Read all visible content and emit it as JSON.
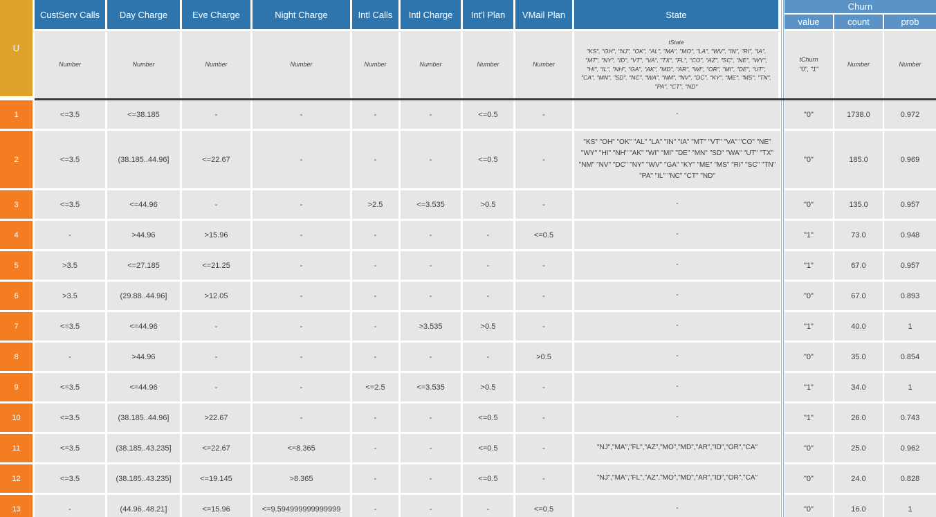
{
  "colors": {
    "header_blue": "#2e75ae",
    "churn_header_blue": "#5b93c6",
    "corner_amber": "#e0a22c",
    "row_number_orange": "#f57c20",
    "cell_gray": "#e6e6e6",
    "divider_dark": "#3b3b3b",
    "pane_separator_blue": "#8ab5da"
  },
  "table": {
    "corner_label": "U",
    "columns": [
      {
        "label": "CustServ Calls",
        "type": "Number"
      },
      {
        "label": "Day Charge",
        "type": "Number"
      },
      {
        "label": "Eve Charge",
        "type": "Number"
      },
      {
        "label": "Night Charge",
        "type": "Number"
      },
      {
        "label": "Intl Calls",
        "type": "Number"
      },
      {
        "label": "Intl Charge",
        "type": "Number"
      },
      {
        "label": "Int'l Plan",
        "type": "Number"
      },
      {
        "label": "VMail Plan",
        "type": "Number"
      },
      {
        "label": "State",
        "type_name": "tState",
        "type_values": "\"KS\", \"OH\", \"NJ\", \"OK\", \"AL\", \"MA\", \"MO\", \"LA\", \"WV\", \"IN\", \"RI\", \"IA\", \"MT\", \"NY\", \"ID\", \"VT\", \"VA\", \"TX\", \"FL\", \"CO\", \"AZ\", \"SC\", \"NE\", \"WY\", \"HI\", \"IL\", \"NH\", \"GA\", \"AK\", \"MD\", \"AR\", \"WI\", \"OR\", \"MI\", \"DE\", \"UT\", \"CA\", \"MN\", \"SD\", \"NC\", \"WA\", \"NM\", \"NV\", \"DC\", \"KY\", \"ME\", \"MS\", \"TN\", \"PA\", \"CT\", \"ND\""
      }
    ],
    "churn": {
      "group_label": "Churn",
      "subcolumns": [
        {
          "label": "value",
          "type_name": "tChurn",
          "type_values": "\"0\", \"1\""
        },
        {
          "label": "count",
          "type": "Number"
        },
        {
          "label": "prob",
          "type": "Number"
        }
      ]
    },
    "rows": [
      {
        "n": "1",
        "values": [
          "<=3.5",
          "<=38.185",
          "-",
          "-",
          "-",
          "-",
          "<=0.5",
          "-",
          "-"
        ],
        "churn": [
          "\"0\"",
          "1738.0",
          "0.972"
        ]
      },
      {
        "n": "2",
        "values": [
          "<=3.5",
          "(38.185..44.96]",
          "<=22.67",
          "-",
          "-",
          "-",
          "<=0.5",
          "-",
          "\"KS\" \"OH\" \"OK\" \"AL\" \"LA\" \"IN\" \"IA\" \"MT\" \"VT\" \"VA\" \"CO\" \"NE\" \"WY\" \"HI\" \"NH\" \"AK\" \"WI\" \"MI\" \"DE\" \"MN\" \"SD\" \"WA\" \"UT\" \"TX\" \"NM\" \"NV\" \"DC\" \"NY\" \"WV\" \"GA\" \"KY\" \"ME\" \"MS\" \"RI\" \"SC\" \"TN\" \"PA\" \"IL\" \"NC\" \"CT\" \"ND\""
        ],
        "churn": [
          "\"0\"",
          "185.0",
          "0.969"
        ]
      },
      {
        "n": "3",
        "values": [
          "<=3.5",
          "<=44.96",
          "-",
          "-",
          ">2.5",
          "<=3.535",
          ">0.5",
          "-",
          "-"
        ],
        "churn": [
          "\"0\"",
          "135.0",
          "0.957"
        ]
      },
      {
        "n": "4",
        "values": [
          "-",
          ">44.96",
          ">15.96",
          "-",
          "-",
          "-",
          "-",
          "<=0.5",
          "-"
        ],
        "churn": [
          "\"1\"",
          "73.0",
          "0.948"
        ]
      },
      {
        "n": "5",
        "values": [
          ">3.5",
          "<=27.185",
          "<=21.25",
          "-",
          "-",
          "-",
          "-",
          "-",
          "-"
        ],
        "churn": [
          "\"1\"",
          "67.0",
          "0.957"
        ]
      },
      {
        "n": "6",
        "values": [
          ">3.5",
          "(29.88..44.96]",
          ">12.05",
          "-",
          "-",
          "-",
          "-",
          "-",
          "-"
        ],
        "churn": [
          "\"0\"",
          "67.0",
          "0.893"
        ]
      },
      {
        "n": "7",
        "values": [
          "<=3.5",
          "<=44.96",
          "-",
          "-",
          "-",
          ">3.535",
          ">0.5",
          "-",
          "-"
        ],
        "churn": [
          "\"1\"",
          "40.0",
          "1"
        ]
      },
      {
        "n": "8",
        "values": [
          "-",
          ">44.96",
          "-",
          "-",
          "-",
          "-",
          "-",
          ">0.5",
          "-"
        ],
        "churn": [
          "\"0\"",
          "35.0",
          "0.854"
        ]
      },
      {
        "n": "9",
        "values": [
          "<=3.5",
          "<=44.96",
          "-",
          "-",
          "<=2.5",
          "<=3.535",
          ">0.5",
          "-",
          "-"
        ],
        "churn": [
          "\"1\"",
          "34.0",
          "1"
        ]
      },
      {
        "n": "10",
        "values": [
          "<=3.5",
          "(38.185..44.96]",
          ">22.67",
          "-",
          "-",
          "-",
          "<=0.5",
          "-",
          "-"
        ],
        "churn": [
          "\"1\"",
          "26.0",
          "0.743"
        ]
      },
      {
        "n": "11",
        "values": [
          "<=3.5",
          "(38.185..43.235]",
          "<=22.67",
          "<=8.365",
          "-",
          "-",
          "<=0.5",
          "-",
          "\"NJ\",\"MA\",\"FL\",\"AZ\",\"MO\",\"MD\",\"AR\",\"ID\",\"OR\",\"CA\""
        ],
        "churn": [
          "\"0\"",
          "25.0",
          "0.962"
        ]
      },
      {
        "n": "12",
        "values": [
          "<=3.5",
          "(38.185..43.235]",
          "<=19.145",
          ">8.365",
          "-",
          "-",
          "<=0.5",
          "-",
          "\"NJ\",\"MA\",\"FL\",\"AZ\",\"MO\",\"MD\",\"AR\",\"ID\",\"OR\",\"CA\""
        ],
        "churn": [
          "\"0\"",
          "24.0",
          "0.828"
        ]
      },
      {
        "n": "13",
        "values": [
          "-",
          "(44.96..48.21]",
          "<=15.96",
          "<=9.594999999999999",
          "-",
          "-",
          "-",
          "<=0.5",
          "-"
        ],
        "churn": [
          "\"0\"",
          "16.0",
          "1"
        ]
      }
    ]
  }
}
